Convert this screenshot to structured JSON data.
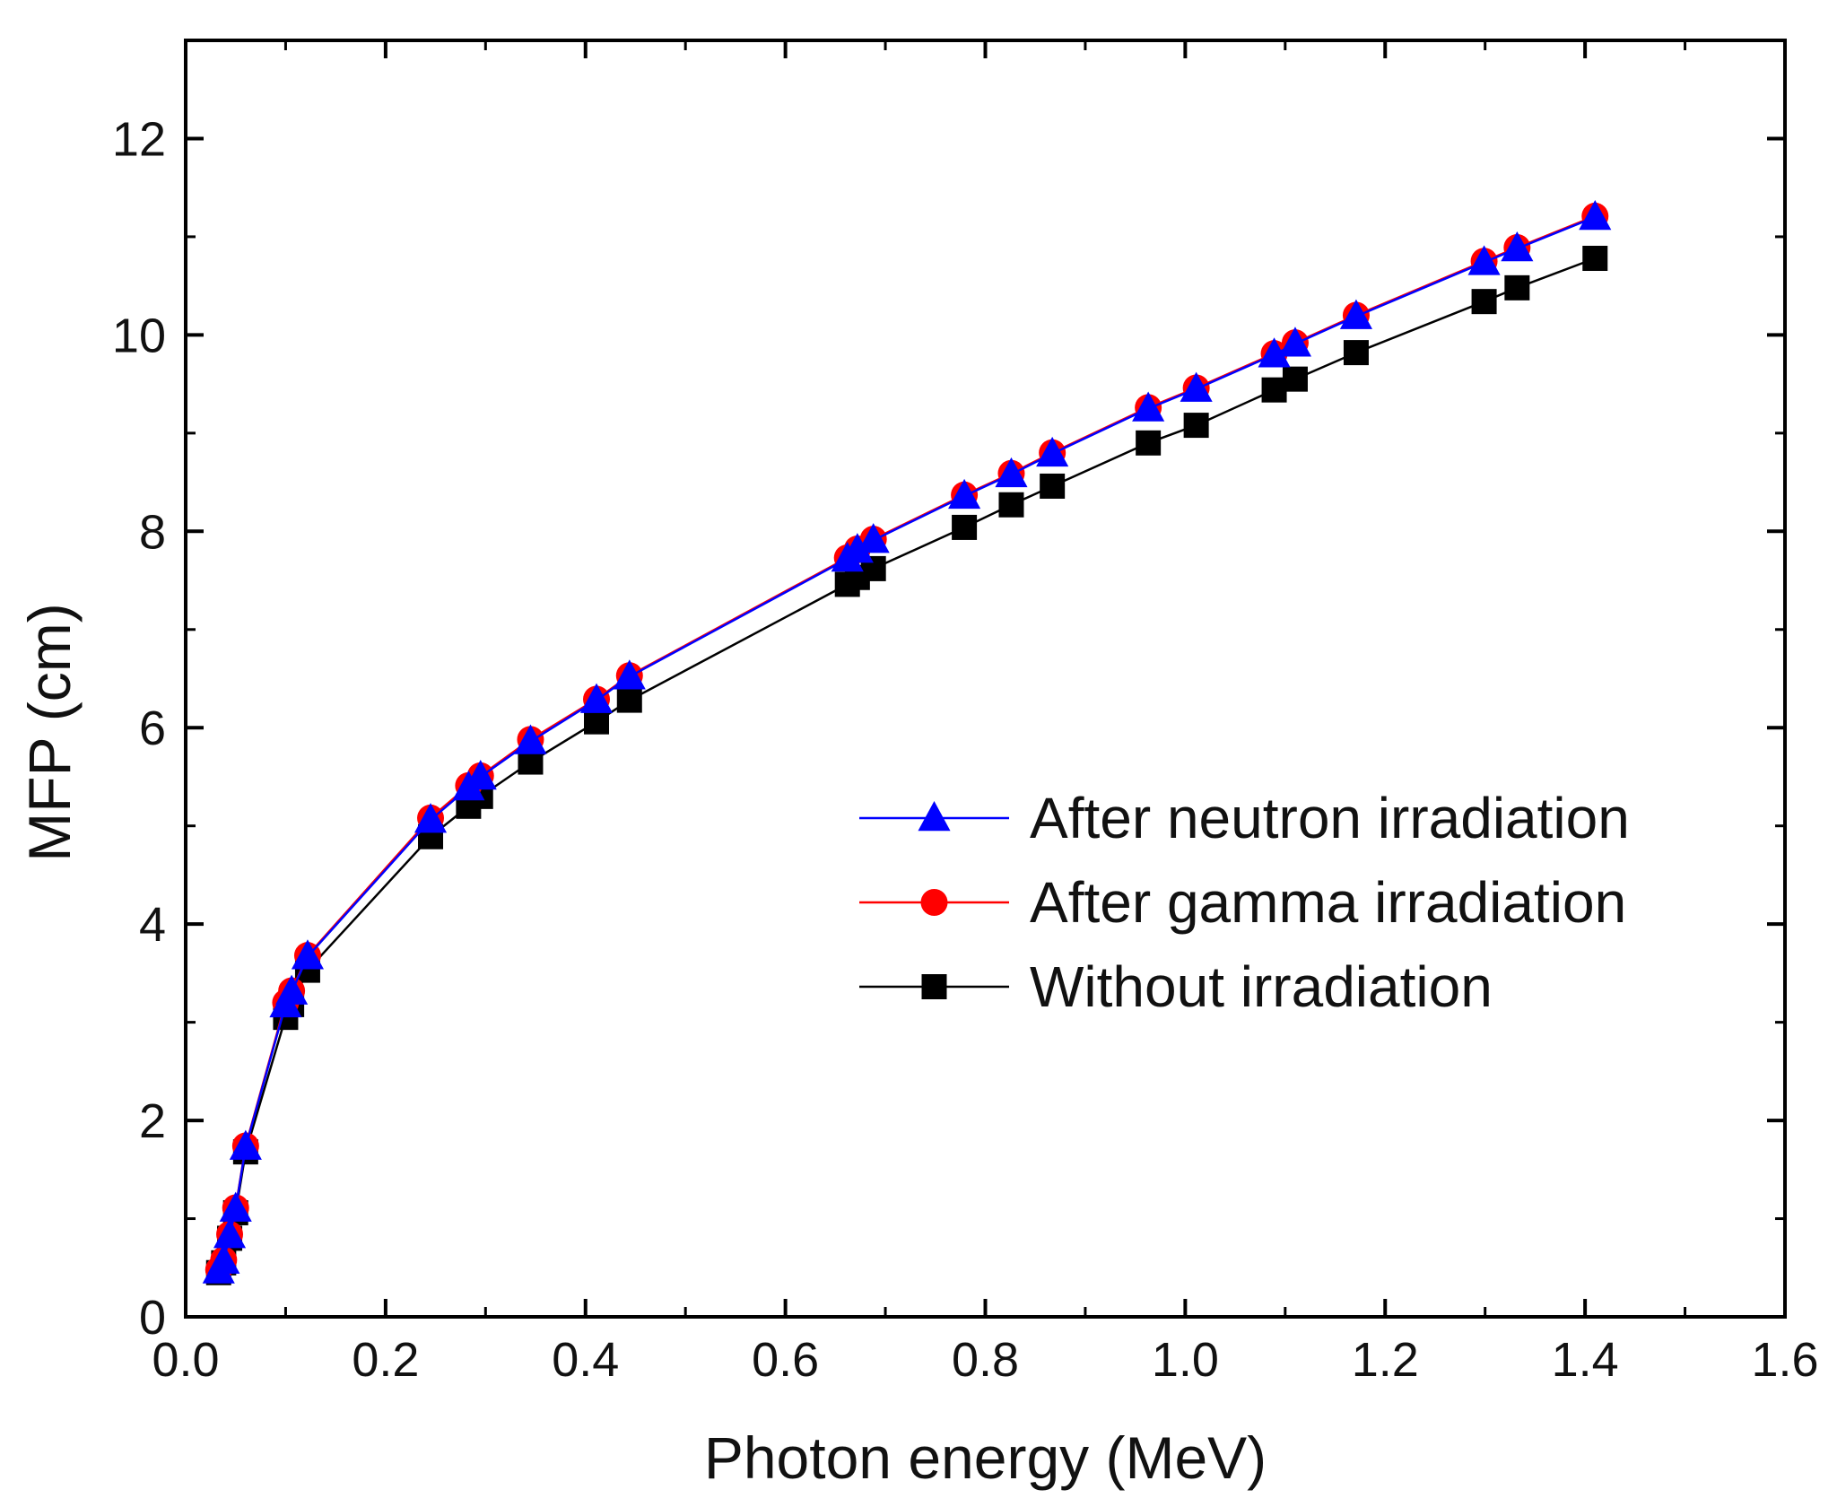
{
  "chart_data": {
    "type": "line",
    "title": "",
    "xlabel": "Photon energy (MeV)",
    "ylabel": "MFP (cm)",
    "xlim": [
      0.0,
      1.6
    ],
    "ylim": [
      0,
      13
    ],
    "xticks": [
      0.0,
      0.2,
      0.4,
      0.6,
      0.8,
      1.0,
      1.2,
      1.4,
      1.6
    ],
    "xtick_labels": [
      "0.0",
      "0.2",
      "0.4",
      "0.6",
      "0.8",
      "1.0",
      "1.2",
      "1.4",
      "1.6"
    ],
    "yticks": [
      0,
      2,
      4,
      6,
      8,
      10,
      12
    ],
    "ytick_labels": [
      "0",
      "2",
      "4",
      "6",
      "8",
      "10",
      "12"
    ],
    "grid": false,
    "legend_position": "center-right",
    "x": [
      0.033,
      0.038,
      0.044,
      0.05,
      0.06,
      0.1,
      0.106,
      0.122,
      0.245,
      0.283,
      0.295,
      0.345,
      0.411,
      0.444,
      0.662,
      0.672,
      0.688,
      0.779,
      0.826,
      0.867,
      0.963,
      1.011,
      1.089,
      1.11,
      1.171,
      1.299,
      1.332,
      1.41
    ],
    "series": [
      {
        "name": "After neutron irradiation",
        "color": "#0000ff",
        "marker": "triangle",
        "values": [
          0.47,
          0.57,
          0.83,
          1.1,
          1.73,
          3.18,
          3.31,
          3.67,
          5.06,
          5.39,
          5.5,
          5.86,
          6.28,
          6.52,
          7.72,
          7.81,
          7.91,
          8.36,
          8.58,
          8.79,
          9.25,
          9.45,
          9.8,
          9.91,
          10.19,
          10.74,
          10.88,
          11.2
        ]
      },
      {
        "name": "After gamma irradiation",
        "color": "#ff0000",
        "marker": "circle",
        "values": [
          0.48,
          0.58,
          0.84,
          1.11,
          1.74,
          3.2,
          3.32,
          3.68,
          5.08,
          5.41,
          5.51,
          5.88,
          6.29,
          6.53,
          7.73,
          7.82,
          7.92,
          8.37,
          8.59,
          8.8,
          9.26,
          9.46,
          9.81,
          9.92,
          10.2,
          10.75,
          10.89,
          11.21
        ]
      },
      {
        "name": "Without irradiation",
        "color": "#000000",
        "marker": "square",
        "values": [
          0.45,
          0.55,
          0.8,
          1.06,
          1.68,
          3.05,
          3.18,
          3.53,
          4.89,
          5.2,
          5.3,
          5.65,
          6.06,
          6.28,
          7.46,
          7.53,
          7.62,
          8.04,
          8.27,
          8.46,
          8.9,
          9.08,
          9.44,
          9.55,
          9.82,
          10.34,
          10.48,
          10.78
        ]
      }
    ]
  }
}
